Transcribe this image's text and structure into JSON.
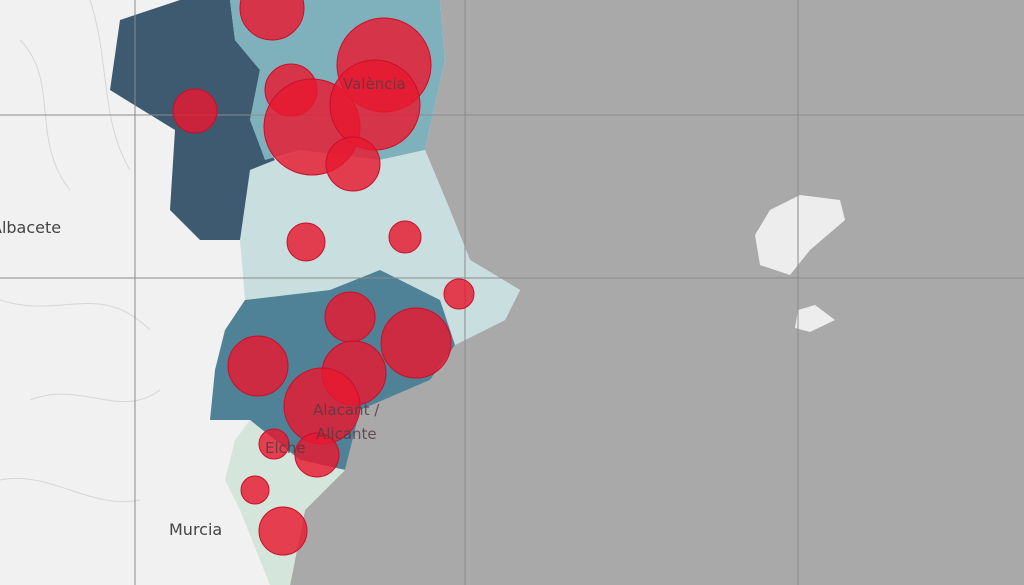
{
  "map": {
    "labels": {
      "albacete": "Albacete",
      "valencia": "València",
      "alacant": "Alacant /",
      "alicante": "Alicante",
      "elche": "Elche",
      "murcia": "Murcia"
    }
  }
}
